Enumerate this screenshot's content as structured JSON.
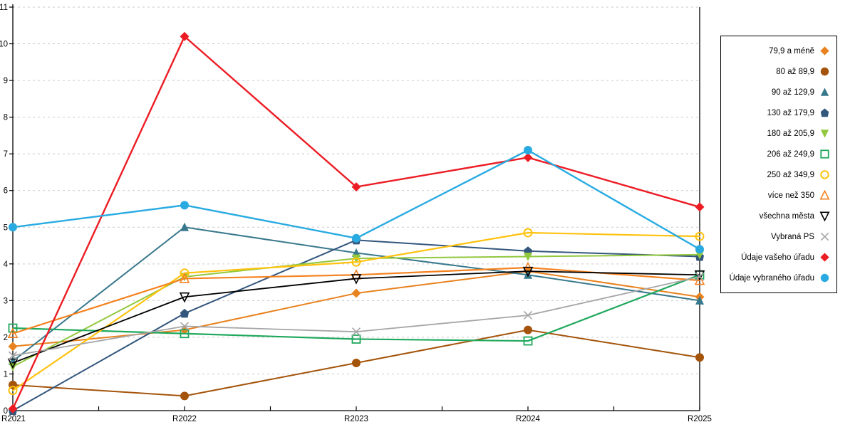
{
  "chart_data": {
    "type": "line",
    "title": "",
    "xlabel": "",
    "ylabel": "",
    "categories": [
      "R2021",
      "R2022",
      "R2023",
      "R2024",
      "R2025"
    ],
    "ylim": [
      0,
      11
    ],
    "yticks": [
      0,
      1,
      2,
      3,
      4,
      5,
      6,
      7,
      8,
      9,
      10,
      11
    ],
    "grid": "horizontal-dashed",
    "legend_position": "right",
    "series": [
      {
        "name": "79,9 a méně",
        "marker": "diamond",
        "fill": "filled",
        "color": "#E8821E",
        "width": 2,
        "values": [
          1.75,
          2.2,
          3.2,
          3.8,
          3.1
        ]
      },
      {
        "name": "80 až 89,9",
        "marker": "circle",
        "fill": "filled",
        "color": "#A4540A",
        "width": 2,
        "values": [
          0.7,
          0.4,
          1.3,
          2.2,
          1.45
        ]
      },
      {
        "name": "90 až 129,9",
        "marker": "triangle-up",
        "fill": "filled",
        "color": "#38788C",
        "width": 2,
        "values": [
          1.35,
          5.0,
          4.3,
          3.7,
          3.0
        ]
      },
      {
        "name": "130 až 179,9",
        "marker": "pentagon",
        "fill": "filled",
        "color": "#33567D",
        "width": 2,
        "values": [
          0.0,
          2.65,
          4.65,
          4.35,
          4.2
        ]
      },
      {
        "name": "180 až 205,9",
        "marker": "triangle-down",
        "fill": "filled",
        "color": "#92C83E",
        "width": 2,
        "values": [
          1.2,
          3.65,
          4.15,
          4.2,
          4.25
        ]
      },
      {
        "name": "206 až 249,9",
        "marker": "square-open",
        "fill": "open",
        "color": "#1FA85C",
        "width": 2.2,
        "values": [
          2.25,
          2.1,
          1.95,
          1.9,
          3.7
        ]
      },
      {
        "name": "250 až 349,9",
        "marker": "circle-open",
        "fill": "open",
        "color": "#FFC20E",
        "width": 2.2,
        "values": [
          0.55,
          3.75,
          4.05,
          4.85,
          4.75
        ]
      },
      {
        "name": "více než 350",
        "marker": "triangle-up-open",
        "fill": "open",
        "color": "#F58220",
        "width": 2.2,
        "values": [
          2.1,
          3.6,
          3.7,
          3.9,
          3.55
        ]
      },
      {
        "name": "všechna města",
        "marker": "triangle-down-open",
        "fill": "open",
        "color": "#000000",
        "width": 1.8,
        "values": [
          1.3,
          3.1,
          3.6,
          3.8,
          3.7
        ]
      },
      {
        "name": "Vybraná PS",
        "marker": "x",
        "fill": "open",
        "color": "#A6A6A6",
        "width": 1.8,
        "values": [
          1.5,
          2.3,
          2.15,
          2.6,
          3.65
        ]
      },
      {
        "name": "Údaje vašeho úřadu",
        "marker": "diamond",
        "fill": "filled",
        "color": "#EC1C24",
        "width": 2.4,
        "values": [
          0.05,
          10.2,
          6.1,
          6.9,
          5.55
        ]
      },
      {
        "name": "Údaje vybraného úřadu",
        "marker": "circle",
        "fill": "filled",
        "color": "#29ABE2",
        "width": 2.4,
        "values": [
          5.0,
          5.6,
          4.7,
          7.1,
          4.4
        ]
      }
    ]
  },
  "axes": {
    "x_tick_labels": [
      "R2021",
      "R2022",
      "R2023",
      "R2024",
      "R2025"
    ],
    "y_tick_labels": [
      "0",
      "1",
      "2",
      "3",
      "4",
      "5",
      "6",
      "7",
      "8",
      "9",
      "10",
      "11"
    ]
  },
  "colors": {
    "axis": "#000000",
    "gridline": "#c9c9c9",
    "background": "#ffffff"
  }
}
